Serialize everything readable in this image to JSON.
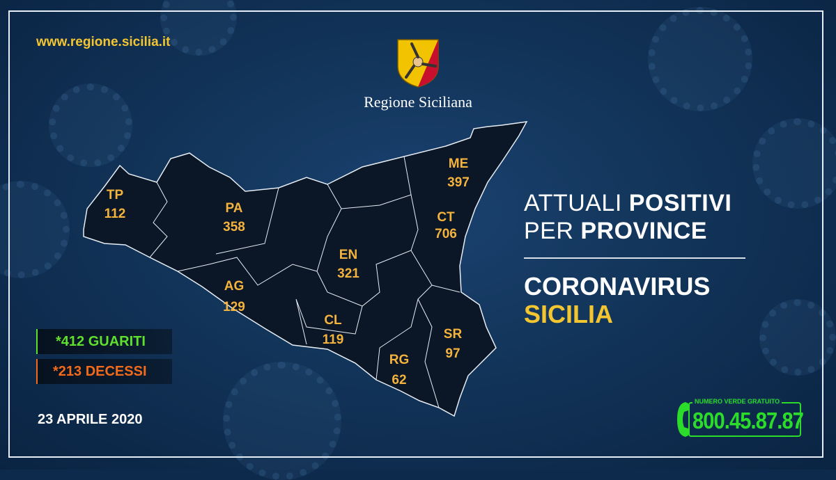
{
  "header": {
    "url": "www.regione.sicilia.it",
    "logo_text": "Regione Siciliana"
  },
  "title": {
    "line1_normal": "ATTUALI ",
    "line1_bold": "POSITIVI",
    "line2_normal": "PER ",
    "line2_bold": "PROVINCE",
    "subtitle1": "CORONAVIRUS",
    "subtitle2": "SICILIA"
  },
  "provinces": [
    {
      "code": "TP",
      "value": "112"
    },
    {
      "code": "PA",
      "value": "358"
    },
    {
      "code": "ME",
      "value": "397"
    },
    {
      "code": "CT",
      "value": "706"
    },
    {
      "code": "EN",
      "value": "321"
    },
    {
      "code": "AG",
      "value": "129"
    },
    {
      "code": "CL",
      "value": "119"
    },
    {
      "code": "SR",
      "value": "97"
    },
    {
      "code": "RG",
      "value": "62"
    }
  ],
  "stats": {
    "recovered": "*412 GUARITI",
    "deaths": "*213 DECESSI"
  },
  "date": "23 APRILE 2020",
  "hotline": {
    "label": "NUMERO VERDE GRATUITO",
    "number": "800.45.87.87"
  },
  "colors": {
    "background": "#123459",
    "province_label": "#f3b33d",
    "accent_yellow": "#f3c531",
    "recovered": "#5ee02c",
    "deaths": "#f26a1b",
    "hotline": "#2bdc2b"
  }
}
